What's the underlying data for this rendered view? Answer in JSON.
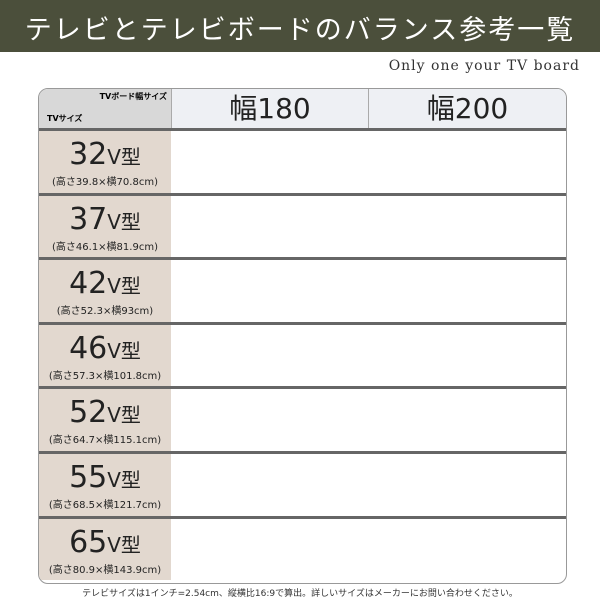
{
  "header": {
    "title": "テレビとテレビボードのバランス参考一覧",
    "subtitle": "Only one your TV board"
  },
  "table": {
    "corner_top": "TVボード幅サイズ",
    "corner_bottom": "TVサイズ",
    "columns": [
      "幅180",
      "幅200"
    ],
    "rows": [
      {
        "size": {
          "number": "32",
          "unit": "V型"
        },
        "dims": "(高さ39.8×横70.8cm)"
      },
      {
        "size": {
          "number": "37",
          "unit": "V型"
        },
        "dims": "(高さ46.1×横81.9cm)"
      },
      {
        "size": {
          "number": "42",
          "unit": "V型"
        },
        "dims": "(高さ52.3×横93cm)"
      },
      {
        "size": {
          "number": "46",
          "unit": "V型"
        },
        "dims": "(高さ57.3×横101.8cm)"
      },
      {
        "size": {
          "number": "52",
          "unit": "V型"
        },
        "dims": "(高さ64.7×横115.1cm)"
      },
      {
        "size": {
          "number": "55",
          "unit": "V型"
        },
        "dims": "(高さ68.5×横121.7cm)"
      },
      {
        "size": {
          "number": "65",
          "unit": "V型"
        },
        "dims": "(高さ80.9×横143.9cm)"
      }
    ]
  },
  "footnote": "テレビサイズは1インチ=2.54cm、縦横比16:9で算出。詳しいサイズはメーカーにお問い合わせください。"
}
